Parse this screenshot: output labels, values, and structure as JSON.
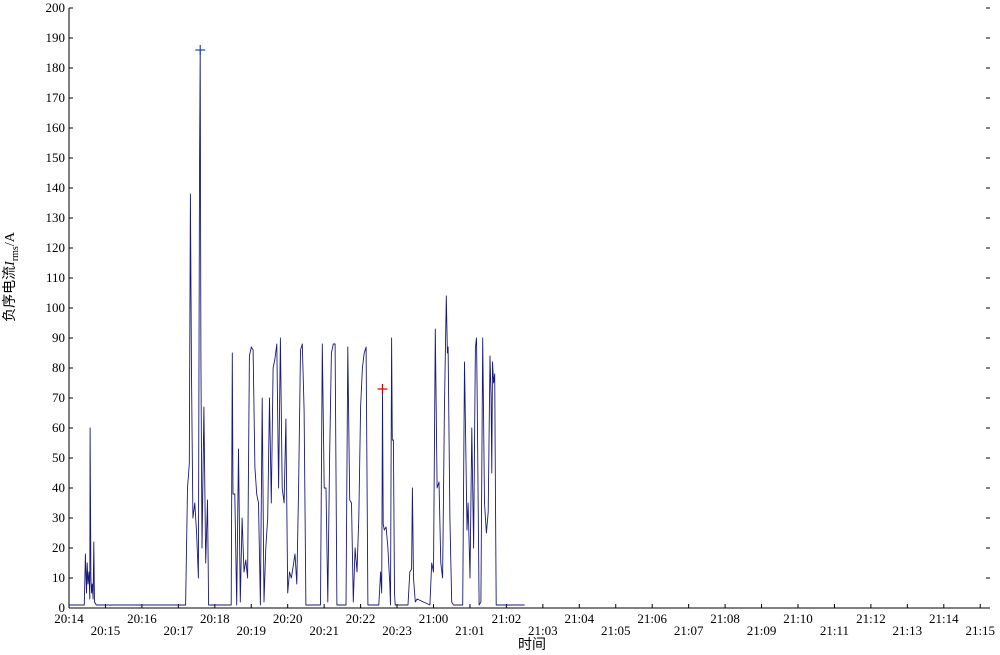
{
  "chart_data": {
    "type": "line",
    "title": "",
    "xlabel": "时间",
    "ylabel_parts": {
      "prefix": "负序电流",
      "symbol": "I",
      "subscript": "rms",
      "unit": "/A"
    },
    "ylim": [
      0,
      200
    ],
    "yticks": [
      0,
      10,
      20,
      30,
      40,
      50,
      60,
      70,
      80,
      90,
      100,
      110,
      120,
      130,
      140,
      150,
      160,
      170,
      180,
      190,
      200
    ],
    "xticks": [
      "20:14",
      "20:15",
      "20:16",
      "20:17",
      "20:18",
      "20:19",
      "20:20",
      "20:21",
      "20:22",
      "20:23",
      "21:00",
      "21:01",
      "21:02",
      "21:03",
      "21:04",
      "21:05",
      "21:06",
      "21:07",
      "21:08",
      "21:09",
      "21:10",
      "21:11",
      "21:12",
      "21:13",
      "21:14",
      "21:15"
    ],
    "grid": false,
    "line_color": "#1a1a7a",
    "series": [
      {
        "name": "",
        "points": [
          [
            0.0,
            1
          ],
          [
            0.4,
            1
          ],
          [
            0.42,
            1
          ],
          [
            0.45,
            18
          ],
          [
            0.48,
            5
          ],
          [
            0.5,
            15
          ],
          [
            0.52,
            8
          ],
          [
            0.55,
            12
          ],
          [
            0.57,
            3
          ],
          [
            0.58,
            60
          ],
          [
            0.6,
            10
          ],
          [
            0.62,
            5
          ],
          [
            0.64,
            8
          ],
          [
            0.66,
            3
          ],
          [
            0.68,
            22
          ],
          [
            0.7,
            2
          ],
          [
            0.75,
            1
          ],
          [
            3.0,
            1
          ],
          [
            3.2,
            1
          ],
          [
            3.25,
            40
          ],
          [
            3.3,
            48
          ],
          [
            3.33,
            138
          ],
          [
            3.36,
            78
          ],
          [
            3.4,
            30
          ],
          [
            3.45,
            35
          ],
          [
            3.5,
            25
          ],
          [
            3.55,
            10
          ],
          [
            3.58,
            145
          ],
          [
            3.6,
            186
          ],
          [
            3.62,
            84
          ],
          [
            3.65,
            20
          ],
          [
            3.7,
            67
          ],
          [
            3.75,
            15
          ],
          [
            3.8,
            36
          ],
          [
            3.83,
            1
          ],
          [
            4.4,
            1
          ],
          [
            4.45,
            1
          ],
          [
            4.48,
            85
          ],
          [
            4.5,
            38
          ],
          [
            4.55,
            38
          ],
          [
            4.6,
            1
          ],
          [
            4.65,
            53
          ],
          [
            4.7,
            2
          ],
          [
            4.75,
            30
          ],
          [
            4.8,
            12
          ],
          [
            4.85,
            16
          ],
          [
            4.9,
            10
          ],
          [
            4.95,
            84
          ],
          [
            5.0,
            87
          ],
          [
            5.05,
            86
          ],
          [
            5.1,
            47
          ],
          [
            5.15,
            38
          ],
          [
            5.2,
            35
          ],
          [
            5.25,
            1
          ],
          [
            5.3,
            70
          ],
          [
            5.35,
            2
          ],
          [
            5.4,
            20
          ],
          [
            5.45,
            30
          ],
          [
            5.5,
            70
          ],
          [
            5.55,
            35
          ],
          [
            5.6,
            80
          ],
          [
            5.65,
            83
          ],
          [
            5.7,
            88
          ],
          [
            5.75,
            40
          ],
          [
            5.8,
            90
          ],
          [
            5.85,
            40
          ],
          [
            5.9,
            35
          ],
          [
            5.95,
            63
          ],
          [
            6.0,
            5
          ],
          [
            6.05,
            12
          ],
          [
            6.1,
            10
          ],
          [
            6.15,
            14
          ],
          [
            6.2,
            18
          ],
          [
            6.25,
            8
          ],
          [
            6.3,
            40
          ],
          [
            6.35,
            86
          ],
          [
            6.4,
            88
          ],
          [
            6.45,
            66
          ],
          [
            6.5,
            1
          ],
          [
            6.9,
            1
          ],
          [
            6.95,
            88
          ],
          [
            7.0,
            40
          ],
          [
            7.05,
            40
          ],
          [
            7.1,
            2
          ],
          [
            7.15,
            50
          ],
          [
            7.2,
            85
          ],
          [
            7.25,
            88
          ],
          [
            7.3,
            88
          ],
          [
            7.35,
            1
          ],
          [
            7.6,
            1
          ],
          [
            7.65,
            87
          ],
          [
            7.7,
            36
          ],
          [
            7.75,
            35
          ],
          [
            7.8,
            2
          ],
          [
            7.85,
            20
          ],
          [
            7.9,
            12
          ],
          [
            7.95,
            30
          ],
          [
            8.0,
            67
          ],
          [
            8.05,
            80
          ],
          [
            8.1,
            85
          ],
          [
            8.15,
            87
          ],
          [
            8.2,
            1
          ],
          [
            8.5,
            1
          ],
          [
            8.55,
            12
          ],
          [
            8.58,
            5
          ],
          [
            8.6,
            73
          ],
          [
            8.62,
            28
          ],
          [
            8.65,
            26
          ],
          [
            8.7,
            27
          ],
          [
            8.75,
            20
          ],
          [
            8.8,
            8
          ],
          [
            8.82,
            1
          ],
          [
            8.85,
            90
          ],
          [
            8.87,
            56
          ],
          [
            8.9,
            56
          ],
          [
            8.93,
            5
          ],
          [
            8.95,
            1
          ],
          [
            9.3,
            1
          ],
          [
            9.35,
            12
          ],
          [
            9.4,
            13
          ],
          [
            9.42,
            40
          ],
          [
            9.45,
            10
          ],
          [
            9.5,
            2
          ],
          [
            9.55,
            3
          ],
          [
            9.9,
            1
          ],
          [
            9.95,
            15
          ],
          [
            10.0,
            12
          ],
          [
            10.05,
            93
          ],
          [
            10.1,
            40
          ],
          [
            10.15,
            42
          ],
          [
            10.2,
            15
          ],
          [
            10.25,
            10
          ],
          [
            10.3,
            66
          ],
          [
            10.35,
            104
          ],
          [
            10.38,
            85
          ],
          [
            10.4,
            87
          ],
          [
            10.45,
            30
          ],
          [
            10.5,
            2
          ],
          [
            10.55,
            1
          ],
          [
            10.8,
            1
          ],
          [
            10.85,
            82
          ],
          [
            10.9,
            42
          ],
          [
            10.92,
            26
          ],
          [
            10.95,
            35
          ],
          [
            11.0,
            10
          ],
          [
            11.05,
            60
          ],
          [
            11.1,
            20
          ],
          [
            11.15,
            87
          ],
          [
            11.18,
            90
          ],
          [
            11.2,
            70
          ],
          [
            11.25,
            1
          ],
          [
            11.3,
            2
          ],
          [
            11.35,
            90
          ],
          [
            11.4,
            35
          ],
          [
            11.45,
            25
          ],
          [
            11.5,
            32
          ],
          [
            11.55,
            84
          ],
          [
            11.58,
            70
          ],
          [
            11.6,
            45
          ],
          [
            11.62,
            82
          ],
          [
            11.65,
            75
          ],
          [
            11.68,
            78
          ],
          [
            11.7,
            35
          ],
          [
            11.72,
            1
          ],
          [
            12.0,
            1
          ],
          [
            12.5,
            1
          ]
        ]
      }
    ],
    "markers": [
      {
        "x": 3.6,
        "y": 186,
        "symbol": "+",
        "color": "#1a4aaa"
      },
      {
        "x": 8.6,
        "y": 73,
        "symbol": "+",
        "color": "#cc0000"
      }
    ]
  }
}
